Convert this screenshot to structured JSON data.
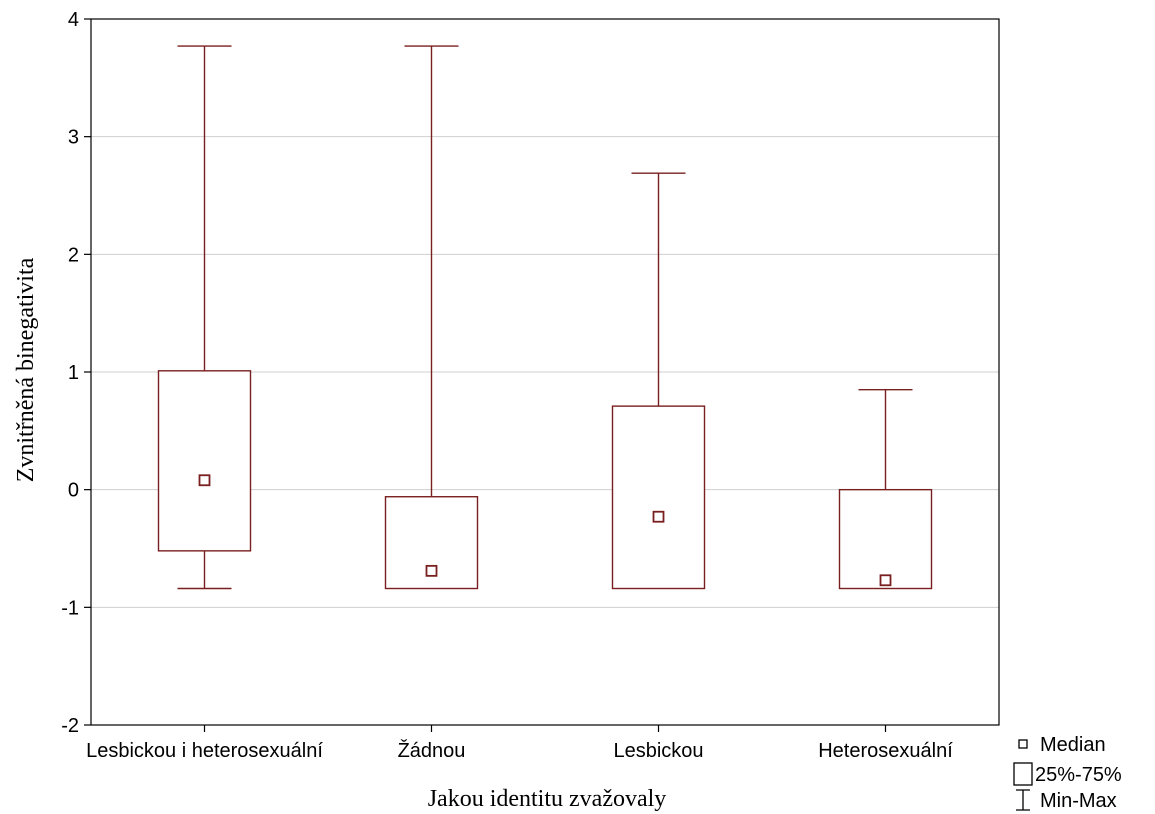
{
  "chart_data": {
    "type": "boxplot",
    "title": "",
    "xlabel": "Jakou identitu zvažovaly",
    "ylabel": "Zvnitřněná binegativita",
    "ylim": [
      -2,
      4
    ],
    "yticks": [
      -2,
      -1,
      0,
      1,
      2,
      3,
      4
    ],
    "grid": true,
    "categories": [
      "Lesbickou i heterosexuální",
      "Žádnou",
      "Lesbickou",
      "Heterosexuální"
    ],
    "series": [
      {
        "category": "Lesbickou i heterosexuální",
        "min": -0.84,
        "q1": -0.52,
        "median": 0.08,
        "q3": 1.01,
        "max": 3.77
      },
      {
        "category": "Žádnou",
        "min": -0.84,
        "q1": -0.84,
        "median": -0.69,
        "q3": -0.06,
        "max": 3.77
      },
      {
        "category": "Lesbickou",
        "min": -0.84,
        "q1": -0.84,
        "median": -0.23,
        "q3": 0.71,
        "max": 2.69
      },
      {
        "category": "Heterosexuální",
        "min": -0.84,
        "q1": -0.84,
        "median": -0.77,
        "q3": 0.0,
        "max": 0.85
      }
    ],
    "legend": {
      "position": "bottom-right",
      "items": [
        "Median",
        "25%-75%",
        "Min-Max"
      ]
    },
    "colors": {
      "box": "#7a1f1f",
      "grid": "#cfcfcf",
      "axis": "#000000"
    }
  }
}
